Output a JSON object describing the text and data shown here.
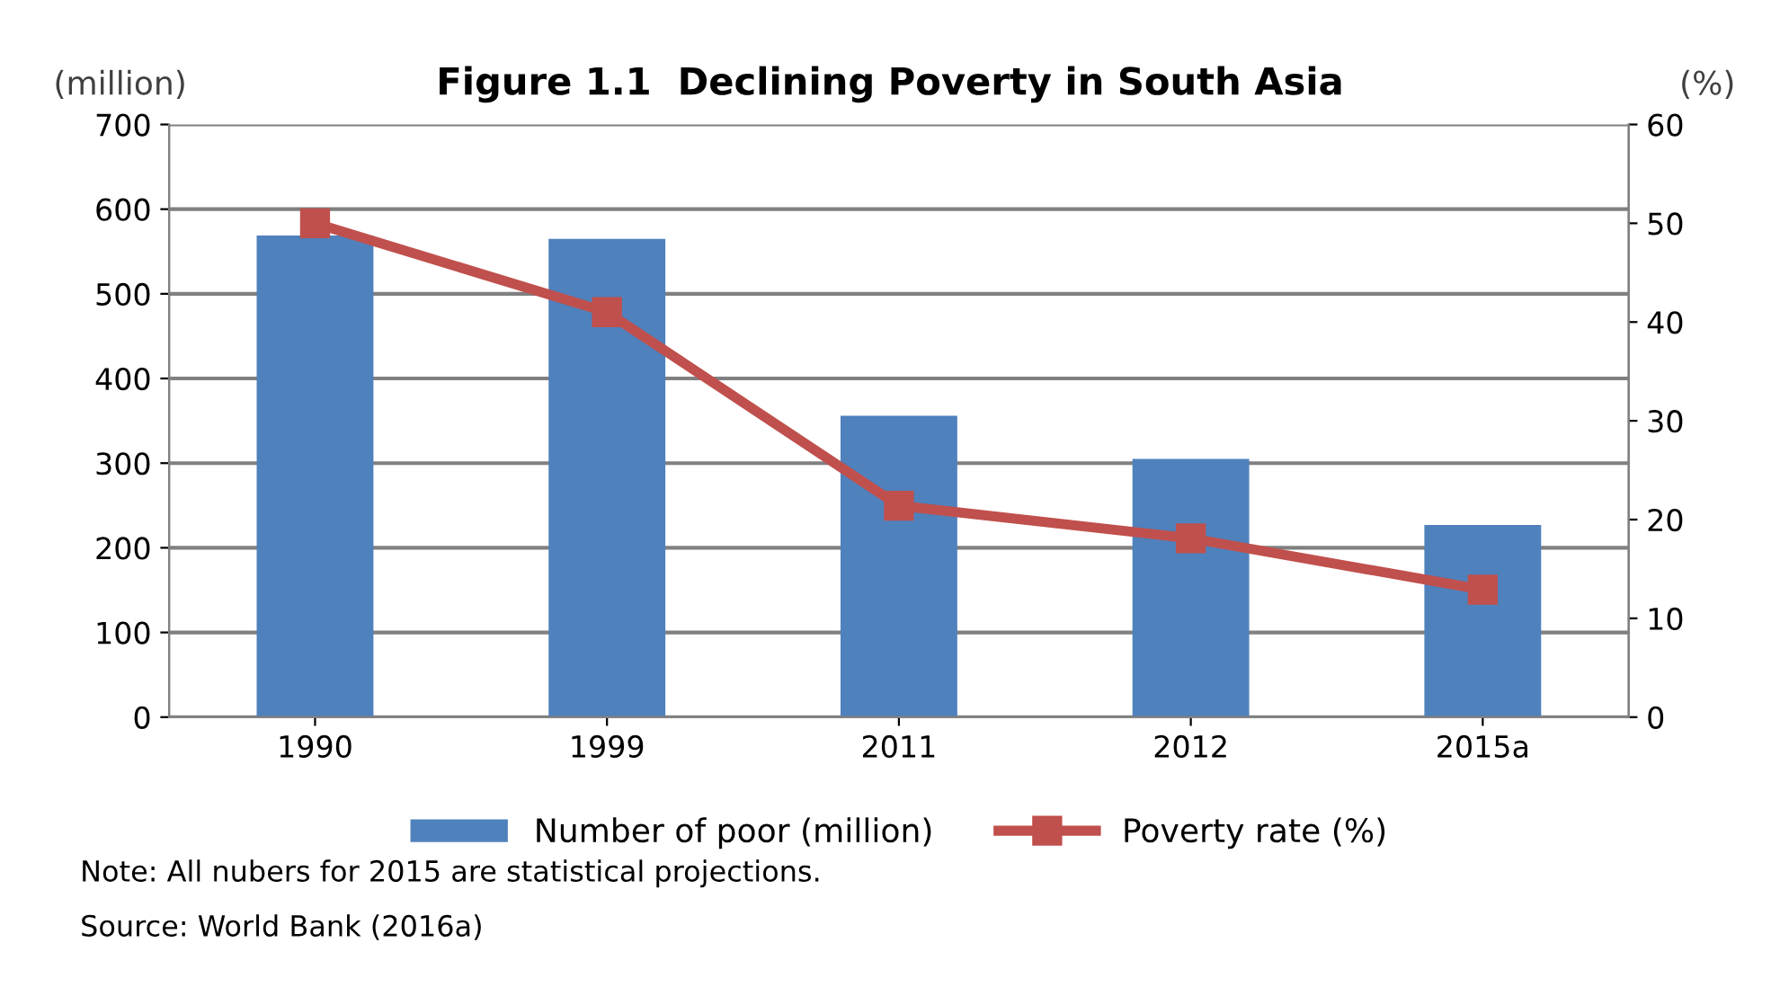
{
  "chart_data": {
    "type": "bar",
    "title": "Figure 1.1  Declining Poverty in South Asia",
    "ylabel": "(million)",
    "y2label": "(%)",
    "categories": [
      "1990",
      "1999",
      "2011",
      "2012",
      "2015a"
    ],
    "series": [
      {
        "name": "Number of poor (million)",
        "color": "#4f81bd",
        "values": [
          569,
          565,
          356,
          305,
          227
        ]
      },
      {
        "name": "Poverty rate (%)",
        "type": "line",
        "axis": "y2",
        "color": "#c0504d",
        "marker": "square",
        "values": [
          50,
          41,
          21.4,
          18.1,
          12.9
        ]
      }
    ],
    "ylim": [
      0,
      700
    ],
    "yticks": [
      0,
      100,
      200,
      300,
      400,
      500,
      600,
      700
    ],
    "y2lim": [
      0,
      60
    ],
    "y2ticks": [
      0,
      10,
      20,
      30,
      40,
      50,
      60
    ],
    "grid": "y",
    "legend": "bottom",
    "annotations": [
      "Note: All nubers for 2015 are statistical projections.",
      "Source: World Bank (2016a)"
    ]
  }
}
